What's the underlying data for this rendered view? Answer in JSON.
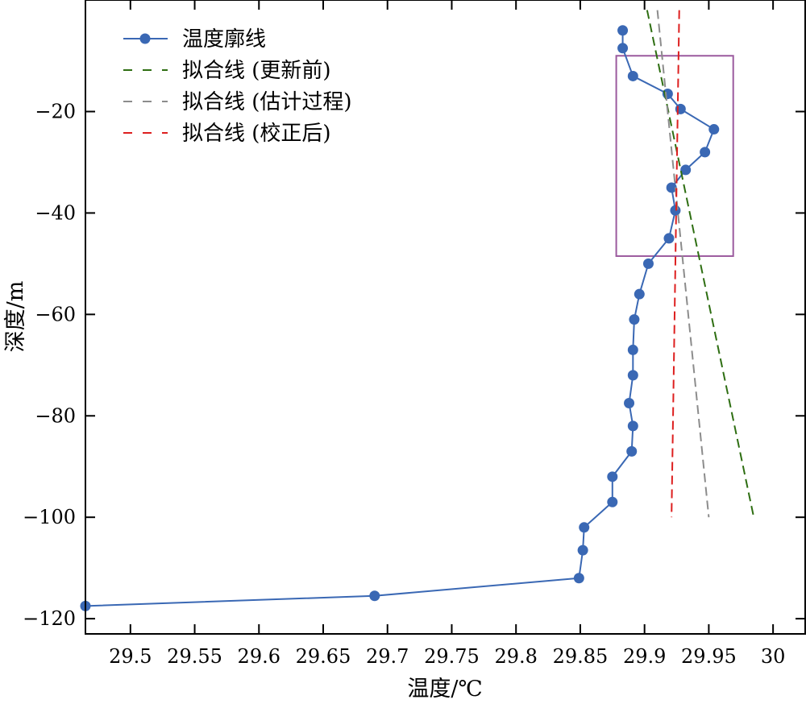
{
  "chart_data": {
    "type": "line",
    "xlabel": "温度/℃",
    "ylabel": "深度/m",
    "xlim": [
      29.465,
      30.025
    ],
    "ylim": [
      -123,
      2
    ],
    "xticks": [
      29.5,
      29.55,
      29.6,
      29.65,
      29.7,
      29.75,
      29.8,
      29.85,
      29.9,
      29.95,
      30.0
    ],
    "xtick_labels": [
      "29.5",
      "29.55",
      "29.6",
      "29.65",
      "29.7",
      "29.75",
      "29.8",
      "29.85",
      "29.9",
      "29.95",
      "30"
    ],
    "yticks": [
      -20,
      -40,
      -60,
      -80,
      -100,
      -120
    ],
    "ytick_labels": [
      "−20",
      "−40",
      "−60",
      "−80",
      "−100",
      "−120"
    ],
    "grid": false,
    "legend_position": "top-left",
    "series": [
      {
        "name": "温度廓线",
        "color": "#3a68b4",
        "style": "solid-markers",
        "x": [
          29.883,
          29.883,
          29.891,
          29.918,
          29.928,
          29.954,
          29.947,
          29.932,
          29.921,
          29.924,
          29.919,
          29.903,
          29.896,
          29.892,
          29.891,
          29.891,
          29.888,
          29.891,
          29.89,
          29.875,
          29.875,
          29.853,
          29.852,
          29.849,
          29.69,
          29.465
        ],
        "y": [
          -4,
          -7.5,
          -13,
          -16.5,
          -19.5,
          -23.5,
          -28,
          -31.5,
          -35,
          -39.5,
          -45,
          -50,
          -56,
          -61,
          -67,
          -72,
          -77.5,
          -82,
          -87,
          -92,
          -97,
          -102,
          -106.5,
          -112,
          -115.5,
          -117.5
        ]
      },
      {
        "name": "拟合线 (更新前)",
        "color": "#2e6e12",
        "style": "dashed",
        "x": [
          29.902,
          29.985
        ],
        "y": [
          0,
          -100
        ]
      },
      {
        "name": "拟合线 (估计过程)",
        "color": "#8c8c8c",
        "style": "dashed",
        "x": [
          29.91,
          29.95
        ],
        "y": [
          0,
          -100
        ]
      },
      {
        "name": "拟合线 (校正后)",
        "color": "#dd1f1f",
        "style": "dashed",
        "x": [
          29.927,
          29.921
        ],
        "y": [
          0,
          -100
        ]
      }
    ],
    "annotations": [
      {
        "type": "rectangle",
        "color": "#9b5a9e",
        "x_range": [
          29.878,
          29.969
        ],
        "y_range": [
          -48.5,
          -9
        ]
      }
    ]
  }
}
